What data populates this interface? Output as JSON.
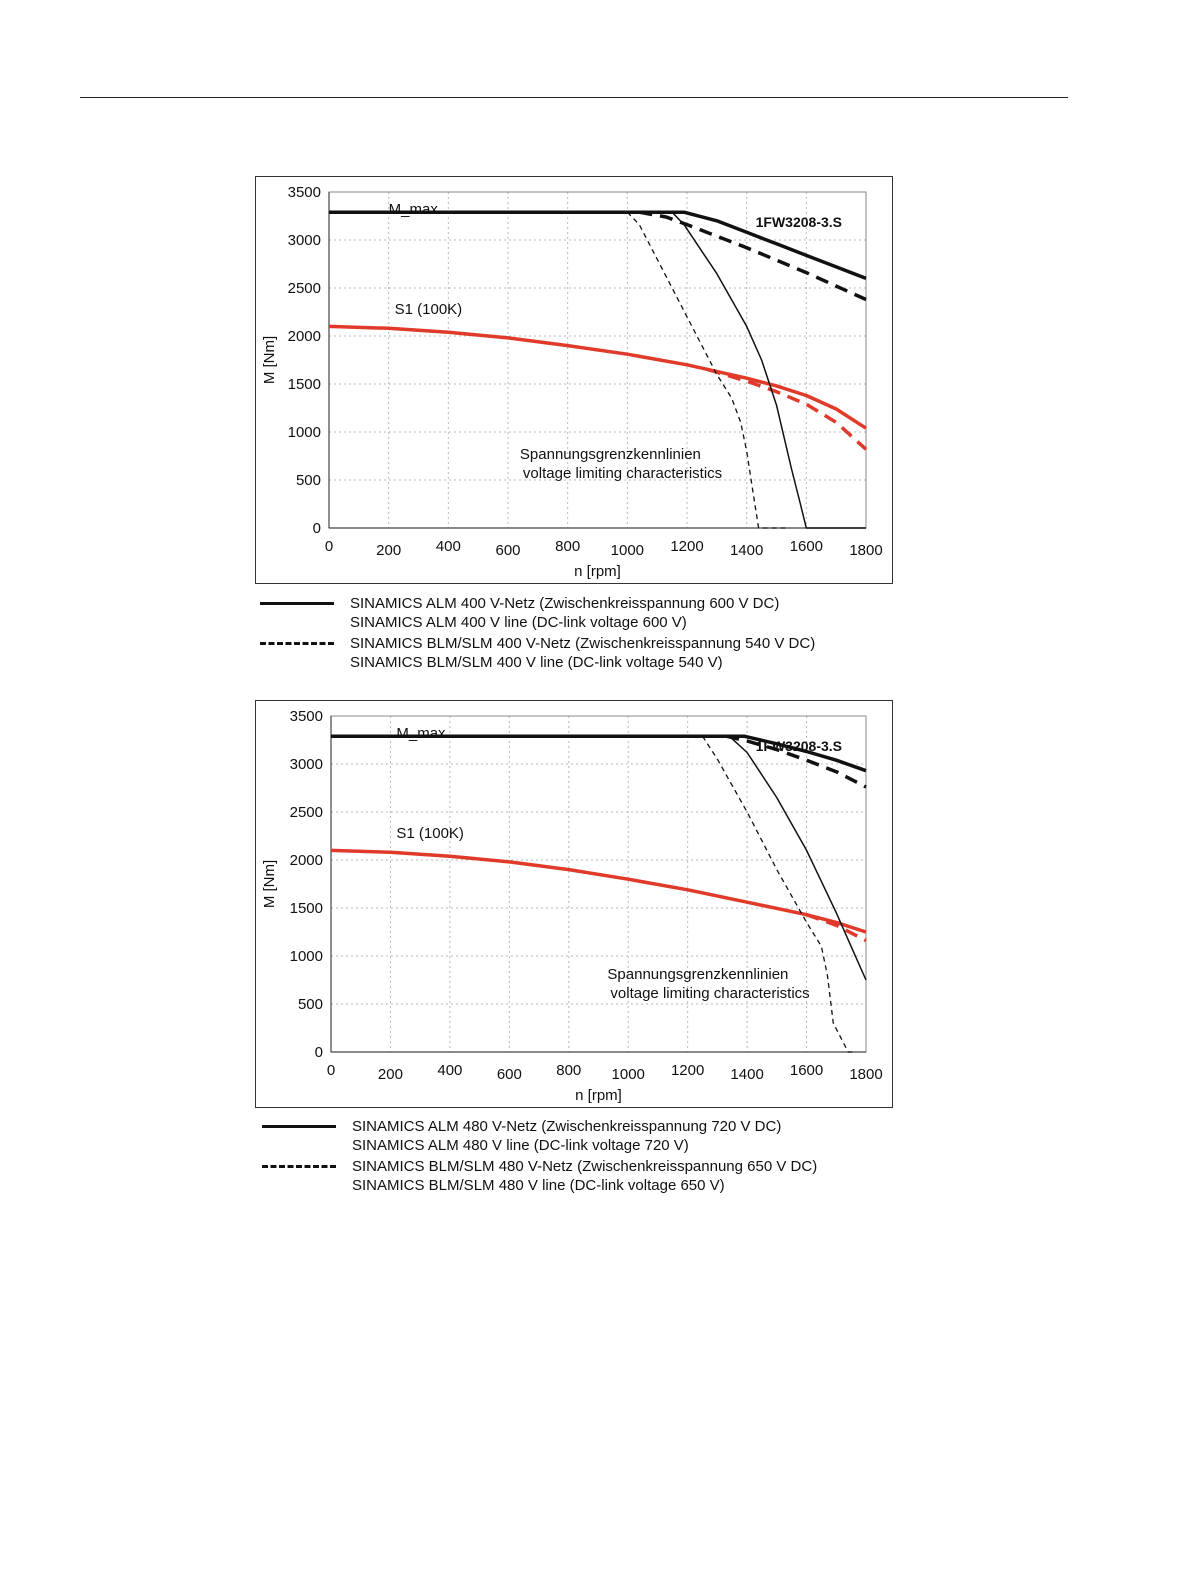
{
  "colors": {
    "black": "#111111",
    "red": "#e03a2a",
    "grid": "#b8b8b8",
    "frame": "#333333"
  },
  "chart_data": [
    {
      "type": "line",
      "title": "1FW3208-3.S",
      "xlabel": "n [rpm]",
      "ylabel": "M [Nm]",
      "xlim": [
        0,
        1800
      ],
      "ylim": [
        0,
        3500
      ],
      "x_ticks": [
        0,
        200,
        400,
        600,
        800,
        1000,
        1200,
        1400,
        1600,
        1800
      ],
      "y_ticks": [
        0,
        500,
        1000,
        1500,
        2000,
        2500,
        3000,
        3500
      ],
      "grid": true,
      "annotations": {
        "mmax": "M_max",
        "s1": "S1 (100K)",
        "voltage_de": "Spannungsgrenzkennlinien",
        "voltage_en": "voltage limiting characteristics"
      },
      "series": [
        {
          "id": "mmax-alm",
          "color": "black",
          "style": "solid",
          "weight": "thick",
          "points": [
            [
              0,
              3290
            ],
            [
              1190,
              3290
            ],
            [
              1300,
              3200
            ],
            [
              1400,
              3080
            ],
            [
              1500,
              2960
            ],
            [
              1600,
              2840
            ],
            [
              1700,
              2720
            ],
            [
              1800,
              2600
            ]
          ]
        },
        {
          "id": "mmax-blm",
          "color": "black",
          "style": "dashed",
          "weight": "thick",
          "points": [
            [
              1040,
              3290
            ],
            [
              1130,
              3240
            ],
            [
              1200,
              3160
            ],
            [
              1300,
              3040
            ],
            [
              1400,
              2920
            ],
            [
              1500,
              2790
            ],
            [
              1600,
              2660
            ],
            [
              1700,
              2520
            ],
            [
              1800,
              2380
            ]
          ]
        },
        {
          "id": "s1-alm",
          "color": "red",
          "style": "solid",
          "weight": "thick",
          "points": [
            [
              0,
              2100
            ],
            [
              200,
              2080
            ],
            [
              400,
              2040
            ],
            [
              600,
              1980
            ],
            [
              800,
              1900
            ],
            [
              1000,
              1810
            ],
            [
              1200,
              1700
            ],
            [
              1400,
              1560
            ],
            [
              1500,
              1480
            ],
            [
              1600,
              1380
            ],
            [
              1700,
              1240
            ],
            [
              1800,
              1040
            ]
          ]
        },
        {
          "id": "s1-blm",
          "color": "red",
          "style": "dashed",
          "weight": "thick",
          "points": [
            [
              1270,
              1650
            ],
            [
              1400,
              1530
            ],
            [
              1500,
              1420
            ],
            [
              1600,
              1290
            ],
            [
              1700,
              1100
            ],
            [
              1800,
              820
            ]
          ]
        },
        {
          "id": "vlim-alm",
          "color": "black",
          "style": "solid",
          "weight": "thin",
          "points": [
            [
              1150,
              3290
            ],
            [
              1190,
              3160
            ],
            [
              1300,
              2650
            ],
            [
              1400,
              2100
            ],
            [
              1450,
              1750
            ],
            [
              1500,
              1280
            ],
            [
              1550,
              620
            ],
            [
              1580,
              250
            ],
            [
              1600,
              0
            ],
            [
              1800,
              0
            ]
          ]
        },
        {
          "id": "vlim-blm",
          "color": "black",
          "style": "dashed",
          "weight": "thin",
          "points": [
            [
              1000,
              3290
            ],
            [
              1040,
              3160
            ],
            [
              1100,
              2800
            ],
            [
              1200,
              2200
            ],
            [
              1300,
              1600
            ],
            [
              1350,
              1350
            ],
            [
              1380,
              1100
            ],
            [
              1400,
              800
            ],
            [
              1420,
              400
            ],
            [
              1440,
              0
            ],
            [
              1530,
              0
            ]
          ]
        }
      ]
    },
    {
      "type": "line",
      "title": "1FW3208-3.S",
      "xlabel": "n [rpm]",
      "ylabel": "M [Nm]",
      "xlim": [
        0,
        1800
      ],
      "ylim": [
        0,
        3500
      ],
      "x_ticks": [
        0,
        200,
        400,
        600,
        800,
        1000,
        1200,
        1400,
        1600,
        1800
      ],
      "y_ticks": [
        0,
        500,
        1000,
        1500,
        2000,
        2500,
        3000,
        3500
      ],
      "grid": true,
      "annotations": {
        "mmax": "M_max",
        "s1": "S1 (100K)",
        "voltage_de": "Spannungsgrenzkennlinien",
        "voltage_en": "voltage limiting characteristics"
      },
      "series": [
        {
          "id": "mmax-alm",
          "color": "black",
          "style": "solid",
          "weight": "thick",
          "points": [
            [
              0,
              3290
            ],
            [
              1390,
              3290
            ],
            [
              1500,
              3210
            ],
            [
              1600,
              3130
            ],
            [
              1700,
              3040
            ],
            [
              1800,
              2930
            ]
          ]
        },
        {
          "id": "mmax-blm",
          "color": "black",
          "style": "dashed",
          "weight": "thick",
          "points": [
            [
              1330,
              3290
            ],
            [
              1400,
              3240
            ],
            [
              1500,
              3150
            ],
            [
              1600,
              3040
            ],
            [
              1700,
              2920
            ],
            [
              1800,
              2760
            ]
          ]
        },
        {
          "id": "s1-alm",
          "color": "red",
          "style": "solid",
          "weight": "thick",
          "points": [
            [
              0,
              2100
            ],
            [
              200,
              2080
            ],
            [
              400,
              2040
            ],
            [
              600,
              1980
            ],
            [
              800,
              1900
            ],
            [
              1000,
              1800
            ],
            [
              1200,
              1690
            ],
            [
              1400,
              1560
            ],
            [
              1600,
              1430
            ],
            [
              1700,
              1350
            ],
            [
              1800,
              1250
            ]
          ]
        },
        {
          "id": "s1-blm",
          "color": "red",
          "style": "dashed",
          "weight": "thick",
          "points": [
            [
              1600,
              1430
            ],
            [
              1700,
              1320
            ],
            [
              1800,
              1160
            ]
          ]
        },
        {
          "id": "vlim-alm",
          "color": "black",
          "style": "solid",
          "weight": "thin",
          "points": [
            [
              1340,
              3290
            ],
            [
              1400,
              3120
            ],
            [
              1500,
              2650
            ],
            [
              1600,
              2100
            ],
            [
              1700,
              1450
            ],
            [
              1750,
              1100
            ],
            [
              1800,
              750
            ]
          ]
        },
        {
          "id": "vlim-blm",
          "color": "black",
          "style": "dashed",
          "weight": "thin",
          "points": [
            [
              1250,
              3290
            ],
            [
              1300,
              3050
            ],
            [
              1400,
              2500
            ],
            [
              1500,
              1900
            ],
            [
              1600,
              1350
            ],
            [
              1650,
              1100
            ],
            [
              1670,
              800
            ],
            [
              1690,
              300
            ],
            [
              1740,
              0
            ],
            [
              1760,
              0
            ]
          ]
        }
      ]
    }
  ],
  "legend_1": [
    {
      "style": "solid",
      "line1": "SINAMICS ALM  400 V-Netz (Zwischenkreisspannung 600 V DC)",
      "line2": "SINAMICS ALM  400 V line (DC-link voltage 600 V)"
    },
    {
      "style": "dashed",
      "line1": "SINAMICS BLM/SLM  400 V-Netz (Zwischenkreisspannung 540 V DC)",
      "line2": "SINAMICS BLM/SLM  400 V line (DC-link voltage 540 V)"
    }
  ],
  "legend_2": [
    {
      "style": "solid",
      "line1": "SINAMICS ALM  480 V-Netz (Zwischenkreisspannung 720 V DC)",
      "line2": "SINAMICS ALM  480 V line (DC-link voltage 720 V)"
    },
    {
      "style": "dashed",
      "line1": "SINAMICS BLM/SLM  480 V-Netz (Zwischenkreisspannung 650 V DC)",
      "line2": "SINAMICS BLM/SLM  480 V line (DC-link voltage 650 V)"
    }
  ]
}
